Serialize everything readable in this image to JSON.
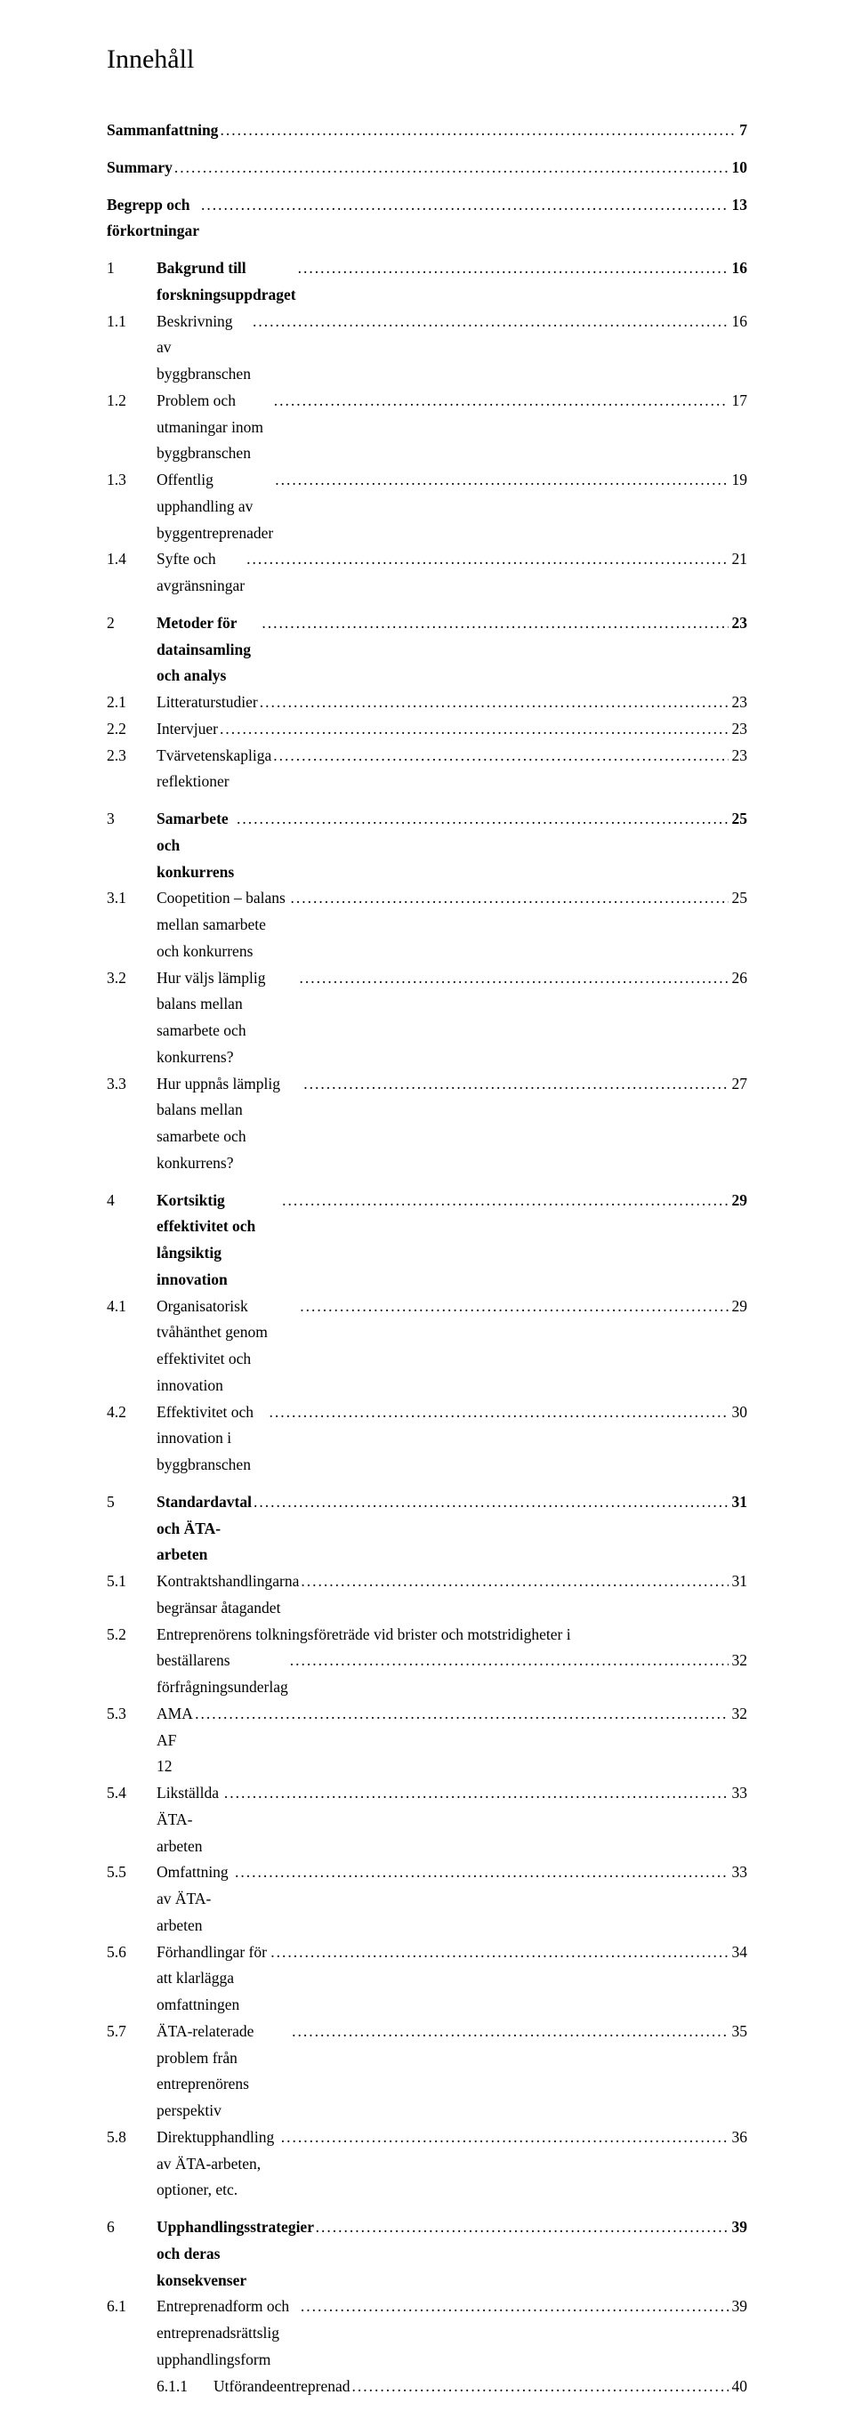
{
  "title": "Innehåll",
  "entries": [
    {
      "num": "",
      "text": "Sammanfattning",
      "page": "7",
      "bold": true,
      "numClass": "w0"
    },
    {
      "gap": true
    },
    {
      "num": "",
      "text": "Summary",
      "page": "10",
      "bold": true,
      "numClass": "w0"
    },
    {
      "gap": true
    },
    {
      "num": "",
      "text": "Begrepp och förkortningar",
      "page": "13",
      "bold": true,
      "numClass": "w0"
    },
    {
      "gap": true
    },
    {
      "num": "1",
      "text": "Bakgrund till forskningsuppdraget",
      "page": "16",
      "bold": true,
      "numClass": "w1"
    },
    {
      "num": "1.1",
      "text": "Beskrivning av byggbranschen",
      "page": "16",
      "bold": false,
      "numClass": "w1"
    },
    {
      "num": "1.2",
      "text": "Problem och utmaningar inom byggbranschen",
      "page": "17",
      "bold": false,
      "numClass": "w1"
    },
    {
      "num": "1.3",
      "text": "Offentlig upphandling av byggentreprenader",
      "page": "19",
      "bold": false,
      "numClass": "w1"
    },
    {
      "num": "1.4",
      "text": "Syfte och avgränsningar",
      "page": "21",
      "bold": false,
      "numClass": "w1"
    },
    {
      "gap": true
    },
    {
      "num": "2",
      "text": "Metoder för datainsamling och analys",
      "page": "23",
      "bold": true,
      "numClass": "w1"
    },
    {
      "num": "2.1",
      "text": "Litteraturstudier",
      "page": "23",
      "bold": false,
      "numClass": "w1"
    },
    {
      "num": "2.2",
      "text": "Intervjuer",
      "page": "23",
      "bold": false,
      "numClass": "w1"
    },
    {
      "num": "2.3",
      "text": "Tvärvetenskapliga reflektioner",
      "page": "23",
      "bold": false,
      "numClass": "w1"
    },
    {
      "gap": true
    },
    {
      "num": "3",
      "text": "Samarbete och konkurrens",
      "page": "25",
      "bold": true,
      "numClass": "w1"
    },
    {
      "num": "3.1",
      "text": "Coopetition – balans mellan samarbete och konkurrens",
      "page": "25",
      "bold": false,
      "numClass": "w1"
    },
    {
      "num": "3.2",
      "text": "Hur väljs lämplig balans mellan samarbete och konkurrens?",
      "page": "26",
      "bold": false,
      "numClass": "w1"
    },
    {
      "num": "3.3",
      "text": "Hur uppnås lämplig balans mellan samarbete och konkurrens?",
      "page": "27",
      "bold": false,
      "numClass": "w1"
    },
    {
      "gap": true
    },
    {
      "num": "4",
      "text": "Kortsiktig effektivitet och långsiktig innovation",
      "page": "29",
      "bold": true,
      "numClass": "w1"
    },
    {
      "num": "4.1",
      "text": "Organisatorisk tvåhänthet genom effektivitet och innovation",
      "page": "29",
      "bold": false,
      "numClass": "w1"
    },
    {
      "num": "4.2",
      "text": "Effektivitet och innovation i byggbranschen",
      "page": "30",
      "bold": false,
      "numClass": "w1"
    },
    {
      "gap": true
    },
    {
      "num": "5",
      "text": "Standardavtal och ÄTA-arbeten",
      "page": "31",
      "bold": true,
      "numClass": "w1"
    },
    {
      "num": "5.1",
      "text": "Kontraktshandlingarna begränsar åtagandet",
      "page": "31",
      "bold": false,
      "numClass": "w1"
    },
    {
      "num": "5.2",
      "multiline": true,
      "line1": "Entreprenörens tolkningsföreträde vid brister och motstridigheter i",
      "line2": "beställarens förfrågningsunderlag",
      "page": "32",
      "bold": false,
      "numClass": "w1"
    },
    {
      "num": "5.3",
      "text": "AMA AF 12",
      "page": "32",
      "bold": false,
      "numClass": "w1"
    },
    {
      "num": "5.4",
      "text": "Likställda ÄTA-arbeten",
      "page": "33",
      "bold": false,
      "numClass": "w1"
    },
    {
      "num": "5.5",
      "text": "Omfattning av ÄTA-arbeten",
      "page": "33",
      "bold": false,
      "numClass": "w1"
    },
    {
      "num": "5.6",
      "text": "Förhandlingar för att klarlägga omfattningen",
      "page": "34",
      "bold": false,
      "numClass": "w1"
    },
    {
      "num": "5.7",
      "text": "ÄTA-relaterade problem från entreprenörens perspektiv",
      "page": "35",
      "bold": false,
      "numClass": "w1"
    },
    {
      "num": "5.8",
      "text": "Direktupphandling av ÄTA-arbeten, optioner, etc.",
      "page": "36",
      "bold": false,
      "numClass": "w1"
    },
    {
      "gap": true
    },
    {
      "num": "6",
      "text": "Upphandlingsstrategier och deras konsekvenser",
      "page": "39",
      "bold": true,
      "numClass": "w1"
    },
    {
      "num": "6.1",
      "text": "Entreprenadform och entreprenadsrättslig upphandlingsform",
      "page": "39",
      "bold": false,
      "numClass": "w1"
    },
    {
      "num": "6.1.1",
      "text": "Utförandeentreprenad",
      "page": "40",
      "bold": false,
      "numClass": "w1-sub"
    }
  ]
}
